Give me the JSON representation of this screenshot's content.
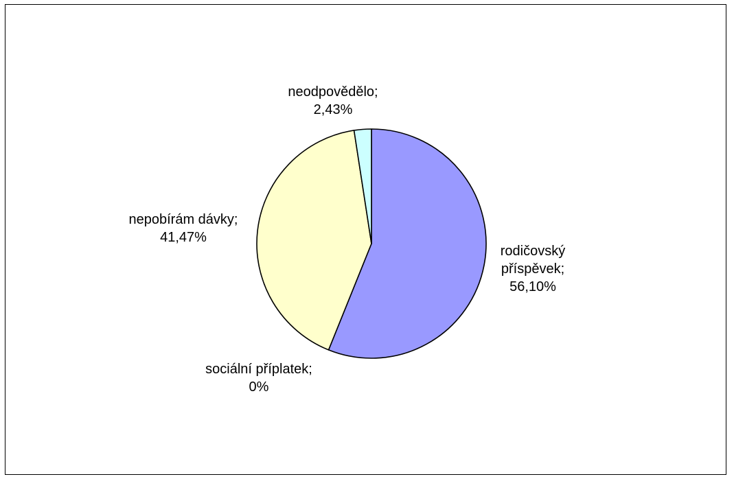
{
  "chart_data": {
    "type": "pie",
    "title": "",
    "slices": [
      {
        "label": "rodičovský příspěvek",
        "value": 56.1,
        "display": [
          "rodičovský",
          "příspěvek;",
          "56,10%"
        ],
        "color": "#9999ff"
      },
      {
        "label": "sociální příplatek",
        "value": 0,
        "display": [
          "sociální příplatek;",
          "0%"
        ],
        "color": "#ff9999"
      },
      {
        "label": "nepobírám dávky",
        "value": 41.47,
        "display": [
          "nepobírám dávky;",
          "41,47%"
        ],
        "color": "#ffffcc"
      },
      {
        "label": "neodpovědělo",
        "value": 2.43,
        "display": [
          "neodpovědělo;",
          "2,43%"
        ],
        "color": "#ccffff"
      }
    ],
    "start_angle_deg": 0,
    "direction": "clockwise",
    "legend": "none"
  }
}
